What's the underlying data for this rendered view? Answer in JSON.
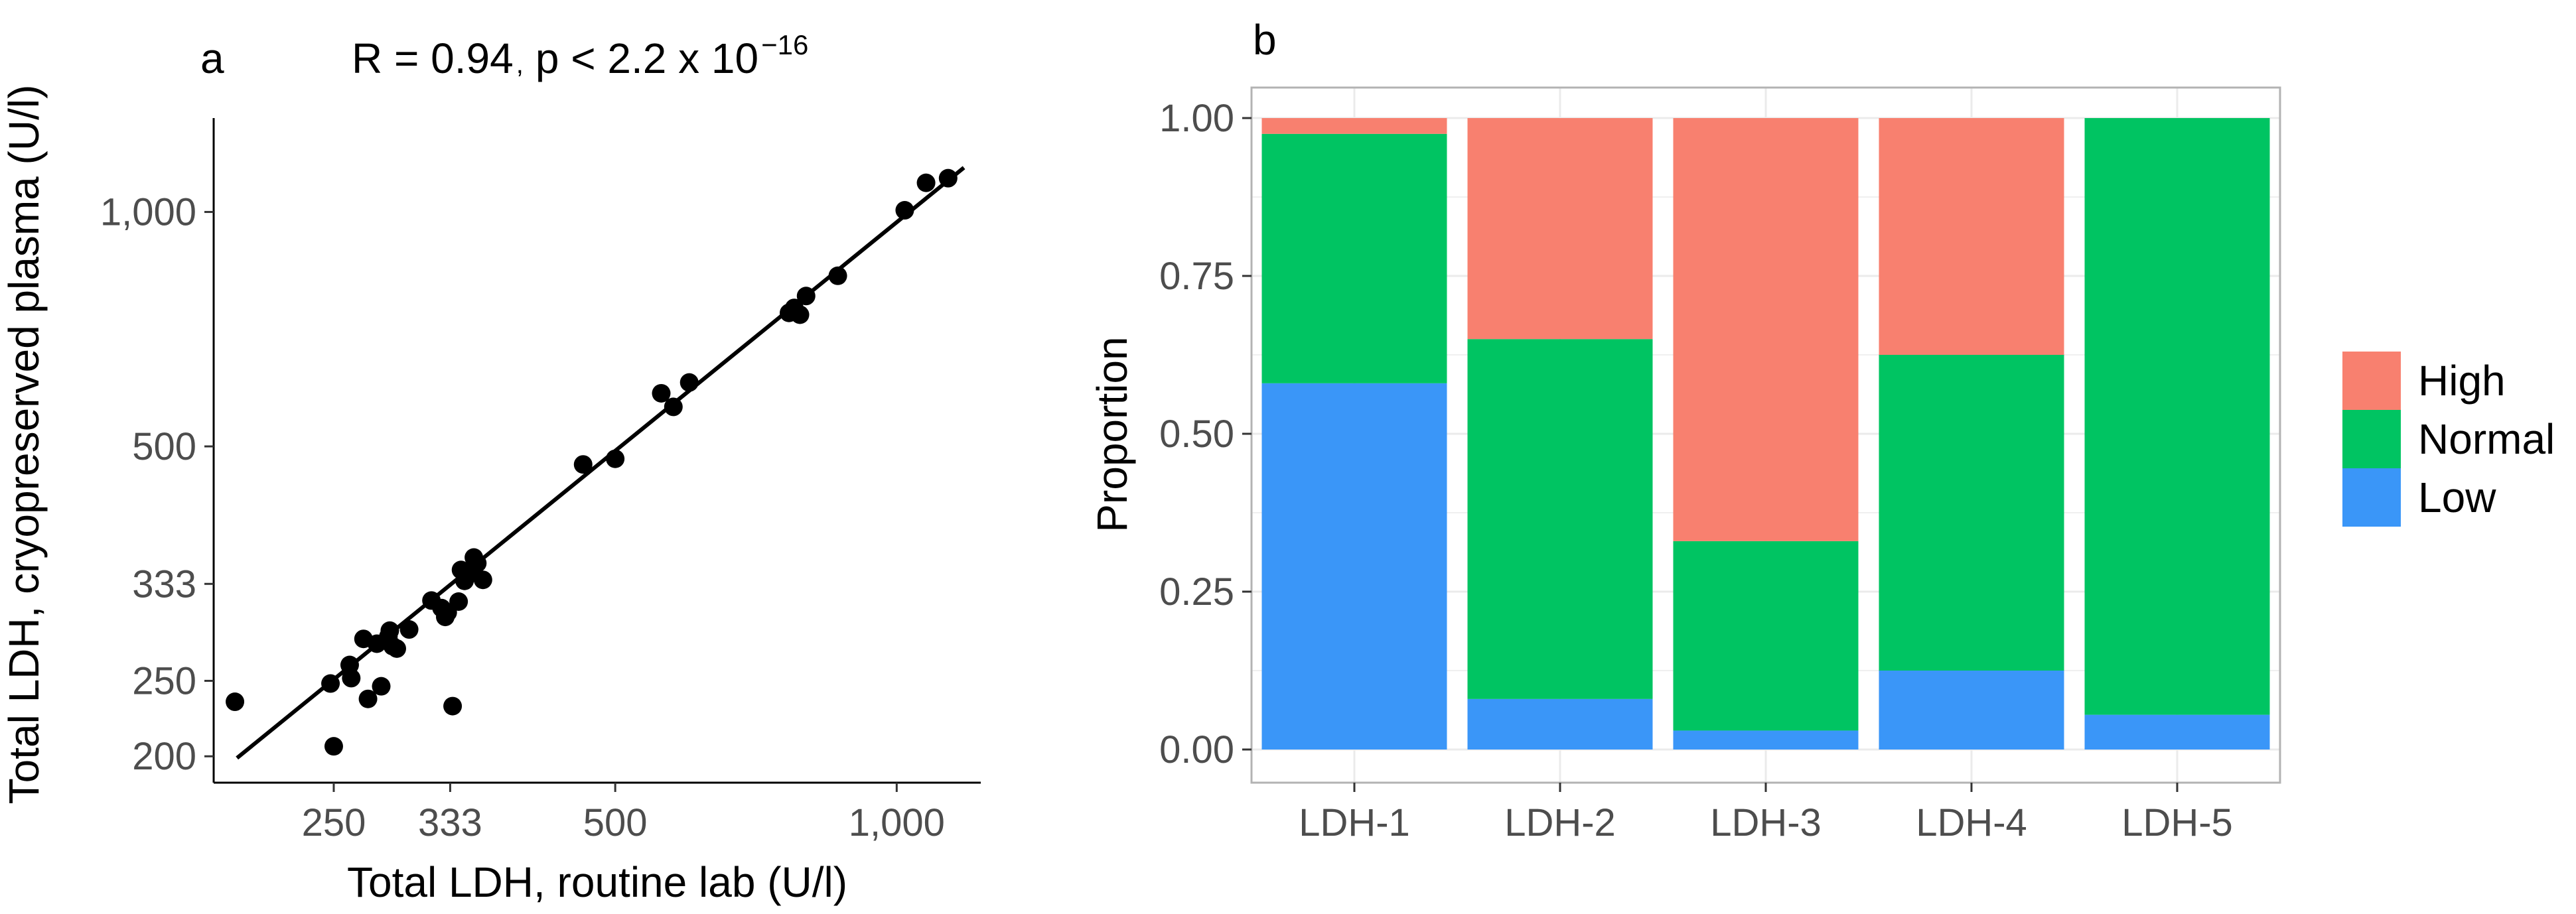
{
  "chart_data": [
    {
      "panel": "a",
      "type": "scatter",
      "annotation": {
        "r_text": "R = 0.94",
        "sep": ",",
        "p_text": "p < 2.2 x 10",
        "p_exp": "−16"
      },
      "xlabel": "Total LDH, routine lab (U/l)",
      "ylabel": "Total LDH, cryopreserved plasma (U/l)",
      "scale": "log",
      "xlim": [
        186,
        1230
      ],
      "ylim": [
        185,
        1320
      ],
      "x_ticks": [
        {
          "value": 250,
          "label": "250"
        },
        {
          "value": 333,
          "label": "333"
        },
        {
          "value": 500,
          "label": "500"
        },
        {
          "value": 1000,
          "label": "1,000"
        }
      ],
      "y_ticks": [
        {
          "value": 200,
          "label": "200"
        },
        {
          "value": 250,
          "label": "250"
        },
        {
          "value": 333,
          "label": "333"
        },
        {
          "value": 500,
          "label": "500"
        },
        {
          "value": 1000,
          "label": "1,000"
        }
      ],
      "fit_line": {
        "x": [
          197,
          1180
        ],
        "y": [
          199,
          1140
        ]
      },
      "points": [
        {
          "x": 196,
          "y": 235
        },
        {
          "x": 248,
          "y": 248
        },
        {
          "x": 250,
          "y": 206
        },
        {
          "x": 260,
          "y": 262
        },
        {
          "x": 261,
          "y": 252
        },
        {
          "x": 269,
          "y": 283
        },
        {
          "x": 272,
          "y": 237
        },
        {
          "x": 278,
          "y": 279
        },
        {
          "x": 281,
          "y": 246
        },
        {
          "x": 286,
          "y": 285
        },
        {
          "x": 287,
          "y": 290
        },
        {
          "x": 289,
          "y": 277
        },
        {
          "x": 292,
          "y": 275
        },
        {
          "x": 301,
          "y": 291
        },
        {
          "x": 318,
          "y": 317
        },
        {
          "x": 326,
          "y": 310
        },
        {
          "x": 329,
          "y": 302
        },
        {
          "x": 331,
          "y": 306
        },
        {
          "x": 335,
          "y": 232
        },
        {
          "x": 340,
          "y": 316
        },
        {
          "x": 342,
          "y": 347
        },
        {
          "x": 345,
          "y": 336
        },
        {
          "x": 349,
          "y": 343
        },
        {
          "x": 353,
          "y": 360
        },
        {
          "x": 356,
          "y": 354
        },
        {
          "x": 361,
          "y": 337
        },
        {
          "x": 462,
          "y": 474
        },
        {
          "x": 500,
          "y": 482
        },
        {
          "x": 560,
          "y": 585
        },
        {
          "x": 577,
          "y": 562
        },
        {
          "x": 600,
          "y": 604
        },
        {
          "x": 767,
          "y": 742
        },
        {
          "x": 777,
          "y": 753
        },
        {
          "x": 788,
          "y": 738
        },
        {
          "x": 800,
          "y": 780
        },
        {
          "x": 865,
          "y": 828
        },
        {
          "x": 1020,
          "y": 1005
        },
        {
          "x": 1075,
          "y": 1090
        },
        {
          "x": 1135,
          "y": 1105
        }
      ]
    },
    {
      "panel": "b",
      "type": "bar",
      "stacked": true,
      "ylabel": "Proportion",
      "xlabel": "",
      "ylim": [
        0,
        1
      ],
      "y_ticks": [
        "0.00",
        "0.25",
        "0.50",
        "0.75",
        "1.00"
      ],
      "y_tick_values": [
        0,
        0.25,
        0.5,
        0.75,
        1
      ],
      "categories": [
        "LDH-1",
        "LDH-2",
        "LDH-3",
        "LDH-4",
        "LDH-5"
      ],
      "series": [
        {
          "name": "Low",
          "color": "#3a96f8",
          "values": [
            0.58,
            0.08,
            0.03,
            0.125,
            0.055
          ]
        },
        {
          "name": "Normal",
          "color": "#00c462",
          "values": [
            0.395,
            0.57,
            0.3,
            0.5,
            0.945
          ]
        },
        {
          "name": "High",
          "color": "#f8806f",
          "values": [
            0.025,
            0.35,
            0.67,
            0.375,
            0.0
          ]
        }
      ],
      "legend": {
        "placement": "right",
        "entries": [
          {
            "label": "High",
            "color": "#f8806f"
          },
          {
            "label": "Normal",
            "color": "#00c462"
          },
          {
            "label": "Low",
            "color": "#3a96f8"
          }
        ]
      },
      "panel_background": "#ffffff",
      "grid_color": "#ebebeb",
      "border_color": "#b3b3b3"
    }
  ]
}
